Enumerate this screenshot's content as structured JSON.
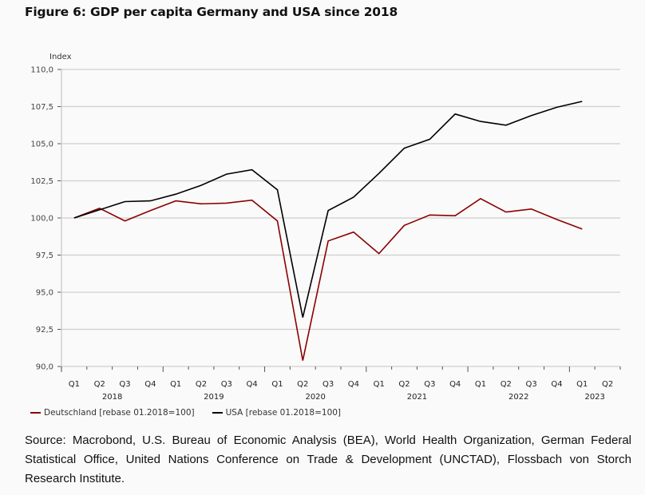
{
  "chart_data": {
    "type": "line",
    "title": "Figure 6: GDP per capita Germany and USA since 2018",
    "ylabel": "Index",
    "xlabel": "",
    "ylim": [
      90,
      110
    ],
    "yticks": [
      90,
      92.5,
      95,
      97.5,
      100,
      102.5,
      105,
      107.5,
      110
    ],
    "ytick_labels": [
      "90,0",
      "92,5",
      "95,0",
      "97,5",
      "100,0",
      "102,5",
      "105,0",
      "107,5",
      "110,0"
    ],
    "grid": true,
    "x": [
      "Q1 2018",
      "Q2 2018",
      "Q3 2018",
      "Q4 2018",
      "Q1 2019",
      "Q2 2019",
      "Q3 2019",
      "Q4 2019",
      "Q1 2020",
      "Q2 2020",
      "Q3 2020",
      "Q4 2020",
      "Q1 2021",
      "Q2 2021",
      "Q3 2021",
      "Q4 2021",
      "Q1 2022",
      "Q2 2022",
      "Q3 2022",
      "Q4 2022",
      "Q1 2023",
      "Q2 2023"
    ],
    "quarter_labels": [
      "Q1",
      "Q2",
      "Q3",
      "Q4",
      "Q1",
      "Q2",
      "Q3",
      "Q4",
      "Q1",
      "Q2",
      "Q3",
      "Q4",
      "Q1",
      "Q2",
      "Q3",
      "Q4",
      "Q1",
      "Q2",
      "Q3",
      "Q4",
      "Q1",
      "Q2"
    ],
    "year_labels": [
      {
        "label": "2018",
        "start_index": 0,
        "count": 4
      },
      {
        "label": "2019",
        "start_index": 4,
        "count": 4
      },
      {
        "label": "2020",
        "start_index": 8,
        "count": 4
      },
      {
        "label": "2021",
        "start_index": 12,
        "count": 4
      },
      {
        "label": "2022",
        "start_index": 16,
        "count": 4
      },
      {
        "label": "2023",
        "start_index": 20,
        "count": 2
      }
    ],
    "series": [
      {
        "name": "Deutschland [rebase 01.2018=100]",
        "color": "#8b0000",
        "values": [
          100.0,
          100.65,
          99.8,
          100.5,
          101.15,
          100.95,
          101.0,
          101.2,
          99.8,
          90.4,
          98.45,
          99.05,
          97.6,
          99.5,
          100.2,
          100.15,
          101.3,
          100.4,
          100.6,
          99.9,
          99.25,
          null
        ]
      },
      {
        "name": "USA [rebase 01.2018=100]",
        "color": "#000000",
        "values": [
          100.0,
          100.55,
          101.1,
          101.15,
          101.6,
          102.2,
          102.95,
          103.25,
          101.9,
          93.3,
          100.5,
          101.4,
          103.0,
          104.7,
          105.3,
          107.0,
          106.5,
          106.25,
          106.9,
          107.45,
          107.85,
          null
        ]
      }
    ],
    "legend_position": "bottom-left"
  },
  "source_text": "Source: Macrobond, U.S. Bureau of Economic Analysis (BEA), World Health Organization, German Federal Statistical Office, United Nations Conference on Trade & Development (UNCTAD), Flossbach von Storch Research Institute."
}
